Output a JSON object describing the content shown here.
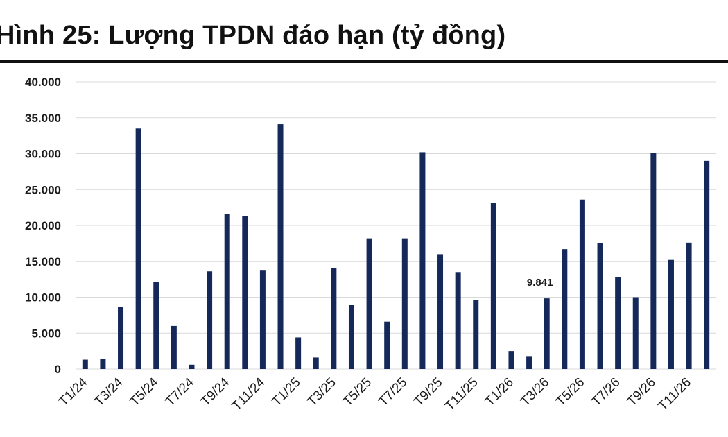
{
  "chart_data": {
    "type": "bar",
    "title": "Hình 25: Lượng TPDN đáo hạn (tỷ đồng)",
    "xlabel": "",
    "ylabel": "",
    "ylim": [
      0,
      40000
    ],
    "yticks": [
      0,
      5000,
      10000,
      15000,
      20000,
      25000,
      30000,
      35000,
      40000
    ],
    "ytick_labels": [
      "0",
      "5.000",
      "10.000",
      "15.000",
      "20.000",
      "25.000",
      "30.000",
      "35.000",
      "40.000"
    ],
    "grid": true,
    "bar_color": "#14285a",
    "categories": [
      "T1/24",
      "T2/24",
      "T3/24",
      "T4/24",
      "T5/24",
      "T6/24",
      "T7/24",
      "T8/24",
      "T9/24",
      "T10/24",
      "T11/24",
      "T12/24",
      "T1/25",
      "T2/25",
      "T3/25",
      "T4/25",
      "T5/25",
      "T6/25",
      "T7/25",
      "T8/25",
      "T9/25",
      "T10/25",
      "T11/25",
      "T12/25",
      "T1/26",
      "T2/26",
      "T3/26",
      "T4/26",
      "T5/26",
      "T6/26",
      "T7/26",
      "T8/26",
      "T9/26",
      "T10/26",
      "T11/26",
      "T12/26"
    ],
    "shown_category_labels": [
      "T1/24",
      "T3/24",
      "T5/24",
      "T7/24",
      "T9/24",
      "T11/24",
      "T1/25",
      "T3/25",
      "T5/25",
      "T7/25",
      "T9/25",
      "T11/25",
      "T1/26",
      "T3/26",
      "T5/26",
      "T7/26",
      "T9/26",
      "T11/26"
    ],
    "values": [
      1300,
      1400,
      8600,
      33500,
      12100,
      6000,
      600,
      13600,
      21600,
      21300,
      13800,
      34100,
      4400,
      1600,
      14100,
      8900,
      18200,
      6600,
      18200,
      30200,
      16000,
      13500,
      9600,
      23100,
      2500,
      1800,
      9841,
      16700,
      23600,
      17500,
      12800,
      10000,
      30100,
      15200,
      17600,
      29000
    ],
    "annotations": [
      {
        "category": "T3/26",
        "text": "9.841"
      }
    ]
  }
}
